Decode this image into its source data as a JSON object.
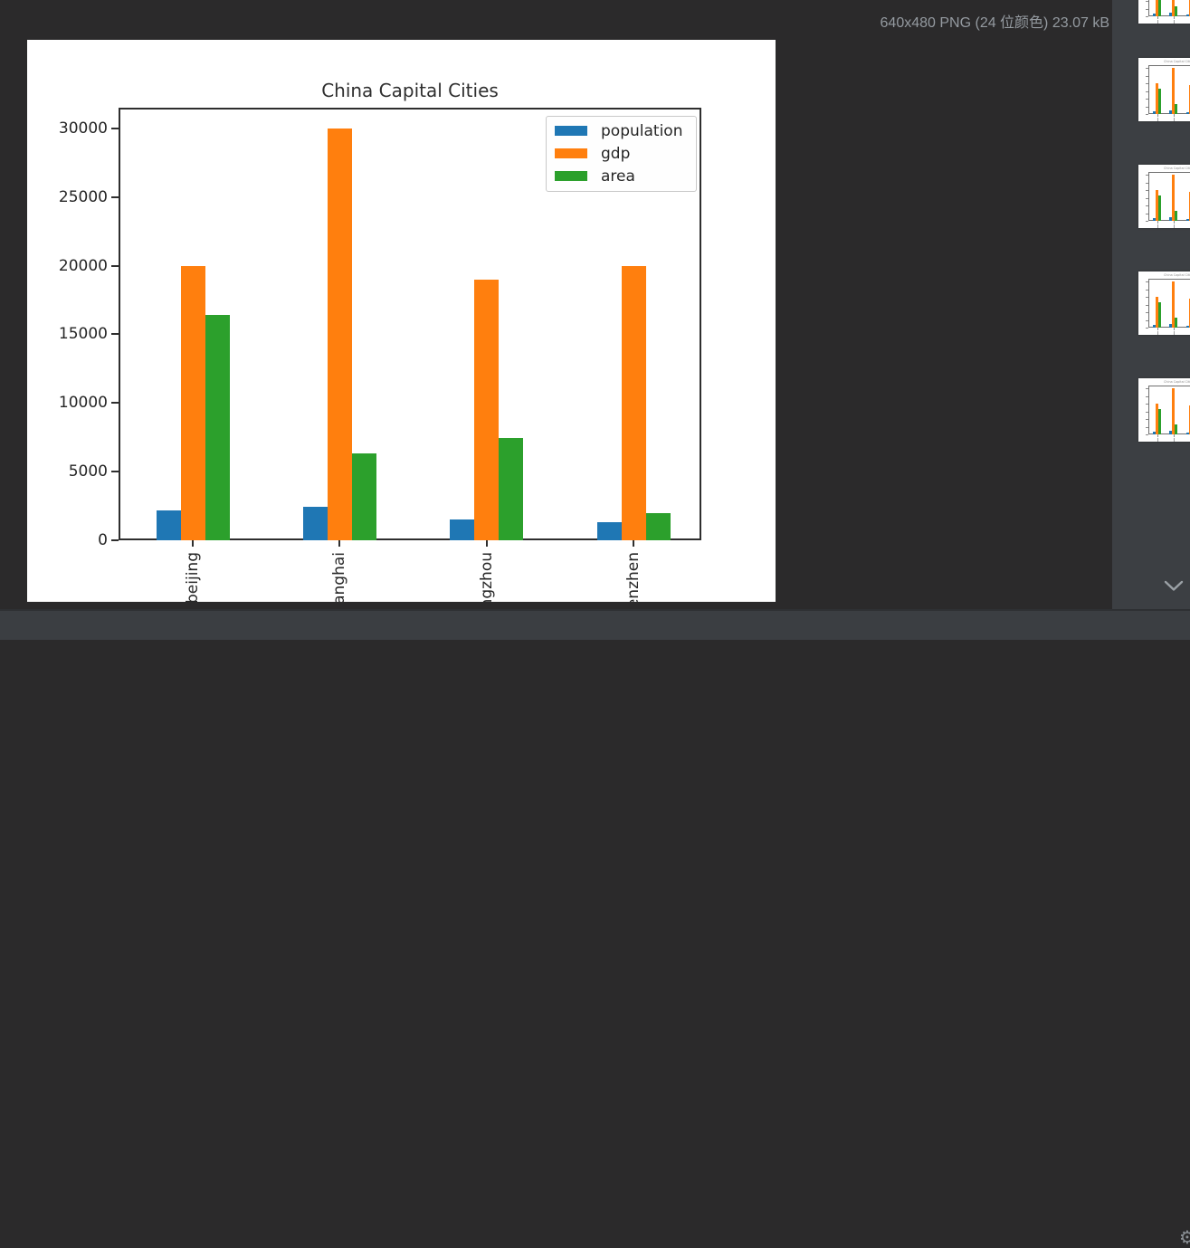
{
  "viewer": {
    "info_text": "640x480 PNG (24 位颜色) 23.07 kB"
  },
  "chart_data": {
    "type": "bar",
    "title": "China Capital Cities",
    "categories": [
      "beijing",
      "shanghai",
      "guangzhou",
      "shenzhen"
    ],
    "series": [
      {
        "name": "population",
        "color": "#1f77b4",
        "values": [
          2154,
          2424,
          1490,
          1303
        ]
      },
      {
        "name": "gdp",
        "color": "#ff7f0e",
        "values": [
          20000,
          30000,
          19000,
          20000
        ]
      },
      {
        "name": "area",
        "color": "#2ca02c",
        "values": [
          16411,
          6341,
          7434,
          1997
        ]
      }
    ],
    "yticks": [
      0,
      5000,
      10000,
      15000,
      20000,
      25000,
      30000
    ],
    "ylim": [
      0,
      31500
    ],
    "xlabel_rotation": 90,
    "grid": false,
    "legend_position": "upper right"
  },
  "thumbnail_panel": {
    "count": 5
  },
  "icons": {
    "chevron_down": "chevron-down",
    "settings_gear": "⚙"
  },
  "colors": {
    "viewer_background": "#2b2a2b",
    "panel_background": "#3c3f43",
    "bottom_bar_background": "#3b3e42",
    "info_text": "#949aa0"
  }
}
